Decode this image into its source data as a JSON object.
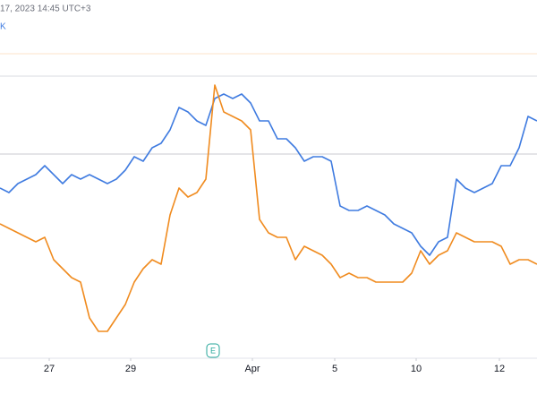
{
  "chart_data": {
    "type": "line",
    "header": "17, 2023 14:45 UTC+3",
    "legend_symbol": "K",
    "event_marker": "E",
    "xlim": [
      0,
      60
    ],
    "ylim": [
      0,
      320
    ],
    "x": [
      0,
      1,
      2,
      3,
      4,
      5,
      6,
      7,
      8,
      9,
      10,
      11,
      12,
      13,
      14,
      15,
      16,
      17,
      18,
      19,
      20,
      21,
      22,
      23,
      24,
      25,
      26,
      27,
      28,
      29,
      30,
      31,
      32,
      33,
      34,
      35,
      36,
      37,
      38,
      39,
      40,
      41,
      42,
      43,
      44,
      45,
      46,
      47,
      48,
      49,
      50,
      51,
      52,
      53,
      54,
      55,
      56,
      57,
      58,
      59,
      60
    ],
    "xticks": [
      {
        "value": 5.5,
        "label": "27"
      },
      {
        "value": 14.6,
        "label": "29"
      },
      {
        "value": 28.2,
        "label": "Apr"
      },
      {
        "value": 37.4,
        "label": "5"
      },
      {
        "value": 46.5,
        "label": "10"
      },
      {
        "value": 55.8,
        "label": "12"
      }
    ],
    "series": [
      {
        "color": "#3f7be0",
        "values": [
          190,
          185,
          195,
          200,
          205,
          215,
          205,
          195,
          205,
          200,
          205,
          200,
          195,
          200,
          210,
          225,
          220,
          235,
          240,
          255,
          280,
          275,
          265,
          260,
          290,
          295,
          290,
          295,
          285,
          265,
          265,
          245,
          245,
          235,
          220,
          225,
          225,
          220,
          170,
          165,
          165,
          170,
          165,
          160,
          150,
          145,
          140,
          125,
          115,
          130,
          135,
          200,
          190,
          185,
          190,
          195,
          215,
          215,
          235,
          270,
          265
        ]
      },
      {
        "color": "#f08b1f",
        "values": [
          150,
          145,
          140,
          135,
          130,
          135,
          110,
          100,
          90,
          85,
          45,
          30,
          30,
          45,
          60,
          85,
          100,
          110,
          105,
          160,
          190,
          180,
          185,
          200,
          305,
          275,
          270,
          265,
          255,
          155,
          140,
          135,
          135,
          110,
          125,
          120,
          115,
          105,
          90,
          95,
          90,
          90,
          85,
          85,
          85,
          85,
          95,
          120,
          105,
          115,
          120,
          140,
          135,
          130,
          130,
          130,
          125,
          105,
          110,
          110,
          105
        ]
      }
    ]
  }
}
